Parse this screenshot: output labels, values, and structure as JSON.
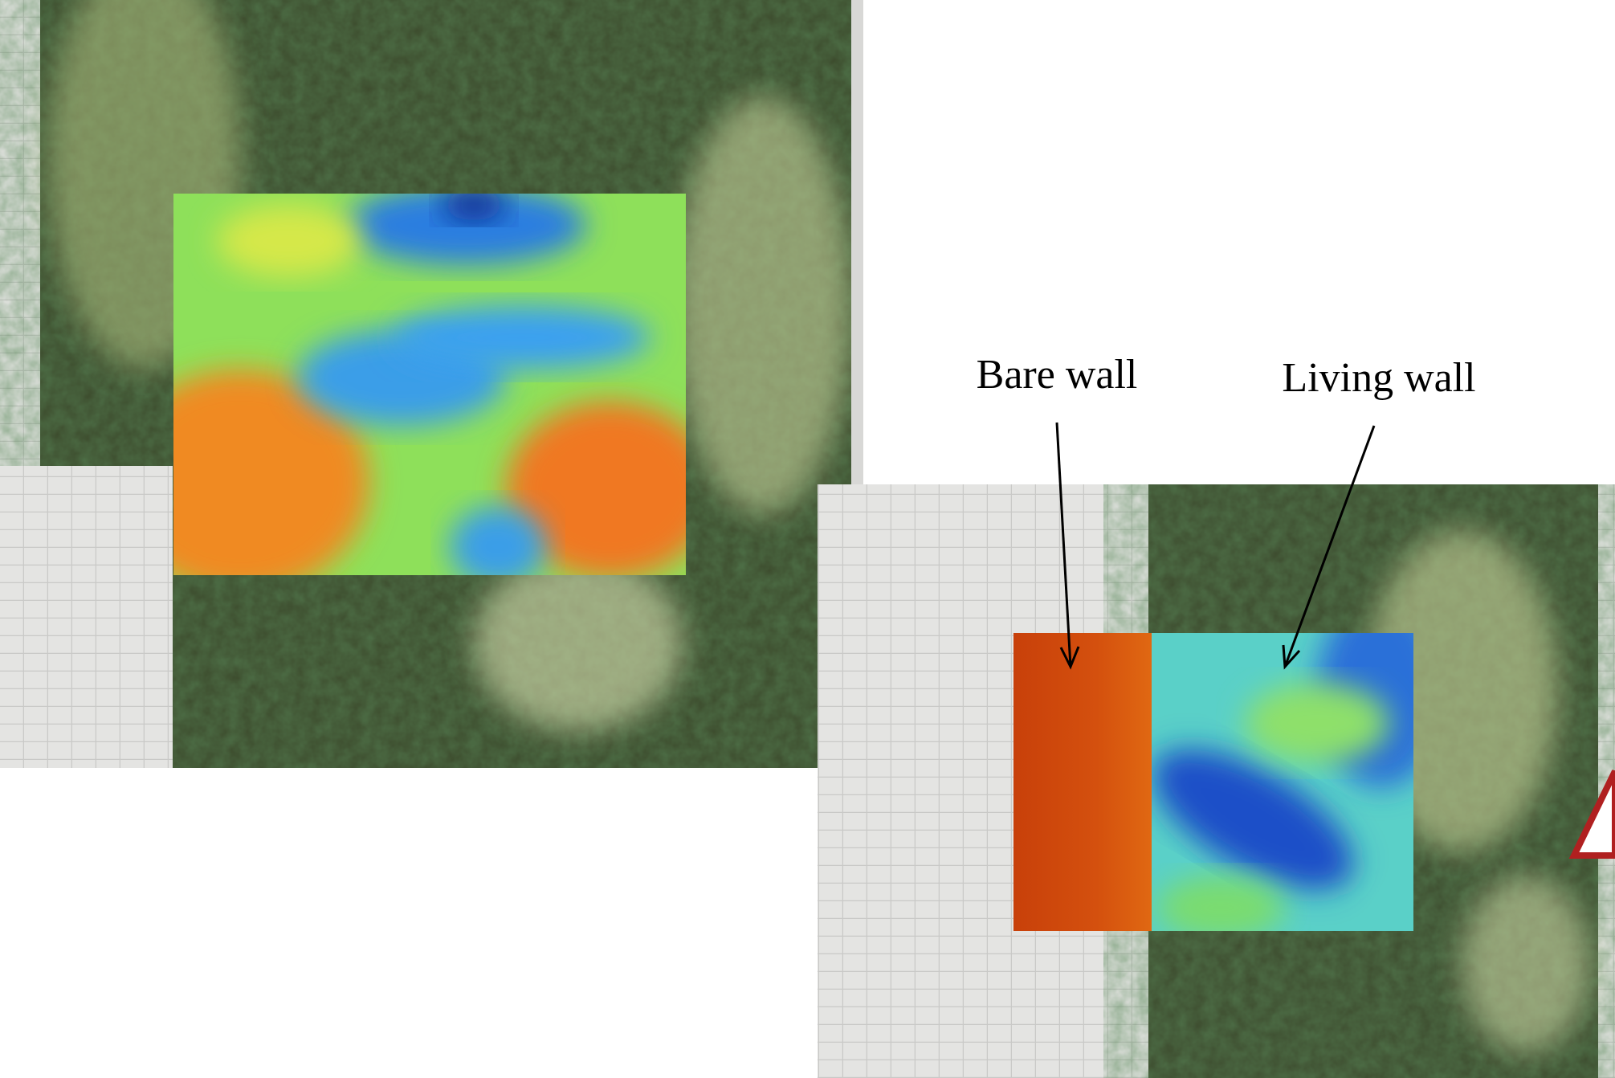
{
  "labels": {
    "bare_wall": "Bare wall",
    "living_wall": "Living wall"
  }
}
